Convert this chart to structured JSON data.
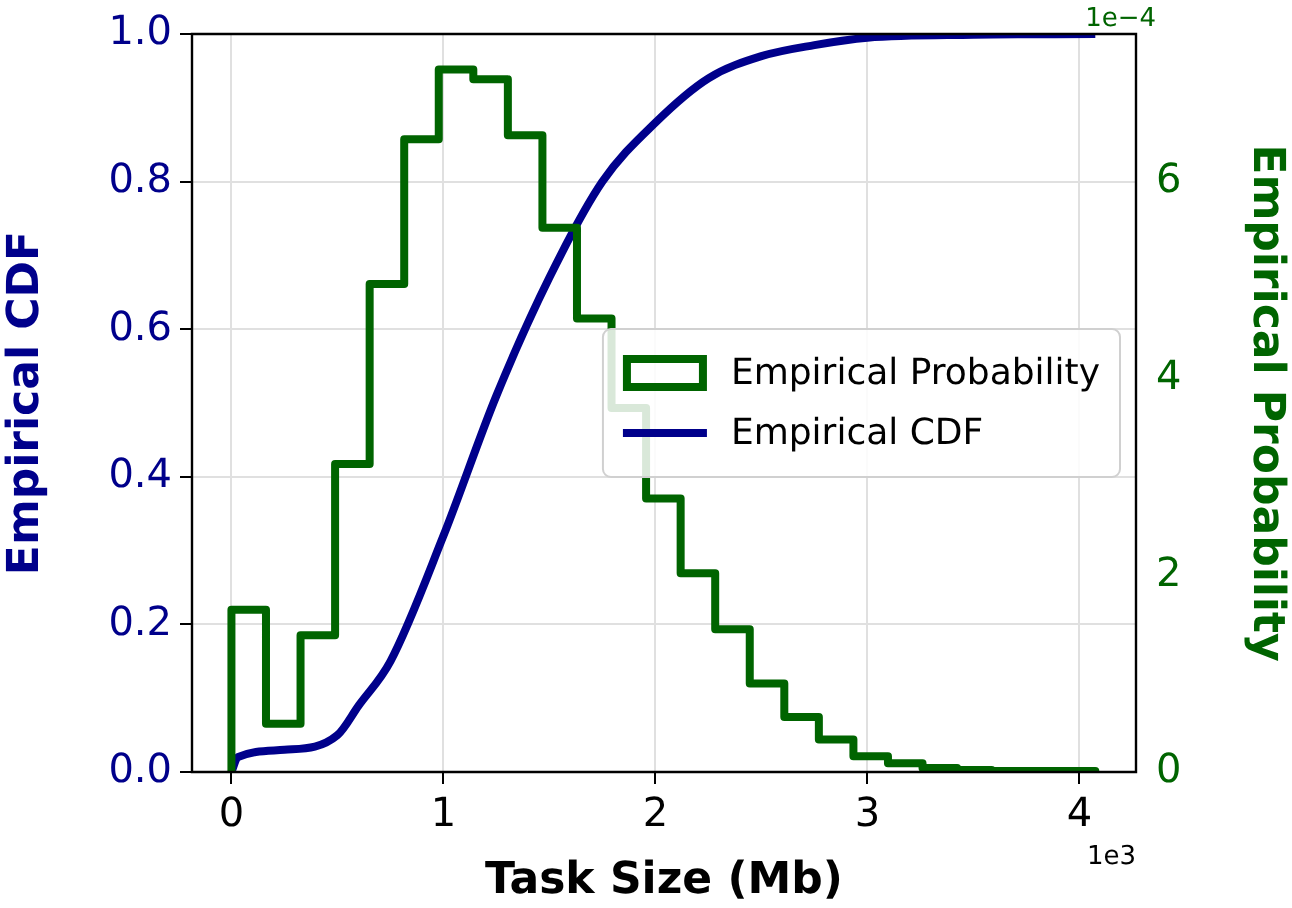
{
  "chart_data": {
    "type": "histogram",
    "xlabel": "Task Size (Mb)",
    "ylabel": "Empirical CDF",
    "y2label": "Empirical Probability",
    "xlim": [
      -0.186,
      4.267
    ],
    "xticks": [
      0,
      1,
      2,
      3,
      4
    ],
    "ylim": [
      0,
      1
    ],
    "yticks": [
      {
        "value": 0,
        "label": "0.0"
      },
      {
        "value": 0.2,
        "label": "0.2"
      },
      {
        "value": 0.4,
        "label": "0.4"
      },
      {
        "value": 0.6,
        "label": "0.6"
      },
      {
        "value": 0.8,
        "label": "0.8"
      },
      {
        "value": 1,
        "label": "1.0"
      }
    ],
    "y2lim": [
      0,
      7.5
    ],
    "y2ticks": [
      0,
      2,
      4,
      6
    ],
    "series": [
      {
        "name": "Empirical Probability",
        "axis": "y2",
        "color": "#006400",
        "bins": [
          0,
          0.163,
          0.326,
          0.489,
          0.652,
          0.815,
          0.978,
          1.141,
          1.304,
          1.467,
          1.63,
          1.793,
          1.956,
          2.119,
          2.282,
          2.445,
          2.608,
          2.771,
          2.934,
          3.097,
          3.26,
          3.423,
          3.586,
          3.749,
          3.912,
          4.075
        ],
        "values": [
          1.65,
          0.49,
          1.39,
          3.13,
          4.96,
          6.43,
          7.14,
          7.04,
          6.47,
          5.53,
          4.61,
          3.7,
          2.78,
          2.02,
          1.45,
          0.9,
          0.56,
          0.33,
          0.16,
          0.09,
          0.04,
          0.02,
          0.01,
          0.01,
          0.01
        ]
      },
      {
        "name": "Empirical CDF",
        "type": "line",
        "color": "#00008b",
        "x": [
          0,
          0.03,
          0.25,
          0.5,
          0.6,
          0.75,
          1,
          1.25,
          1.5,
          1.75,
          2,
          2.25,
          2.5,
          2.75,
          3,
          3.5,
          4.075
        ],
        "values": [
          0,
          0.02,
          0.03,
          0.05,
          0.09,
          0.15,
          0.32,
          0.51,
          0.67,
          0.8,
          0.88,
          0.94,
          0.97,
          0.985,
          0.995,
          0.999,
          1
        ]
      }
    ],
    "grid": true,
    "legend": "right",
    "annotations": [
      "1e3",
      "1e−4"
    ]
  }
}
